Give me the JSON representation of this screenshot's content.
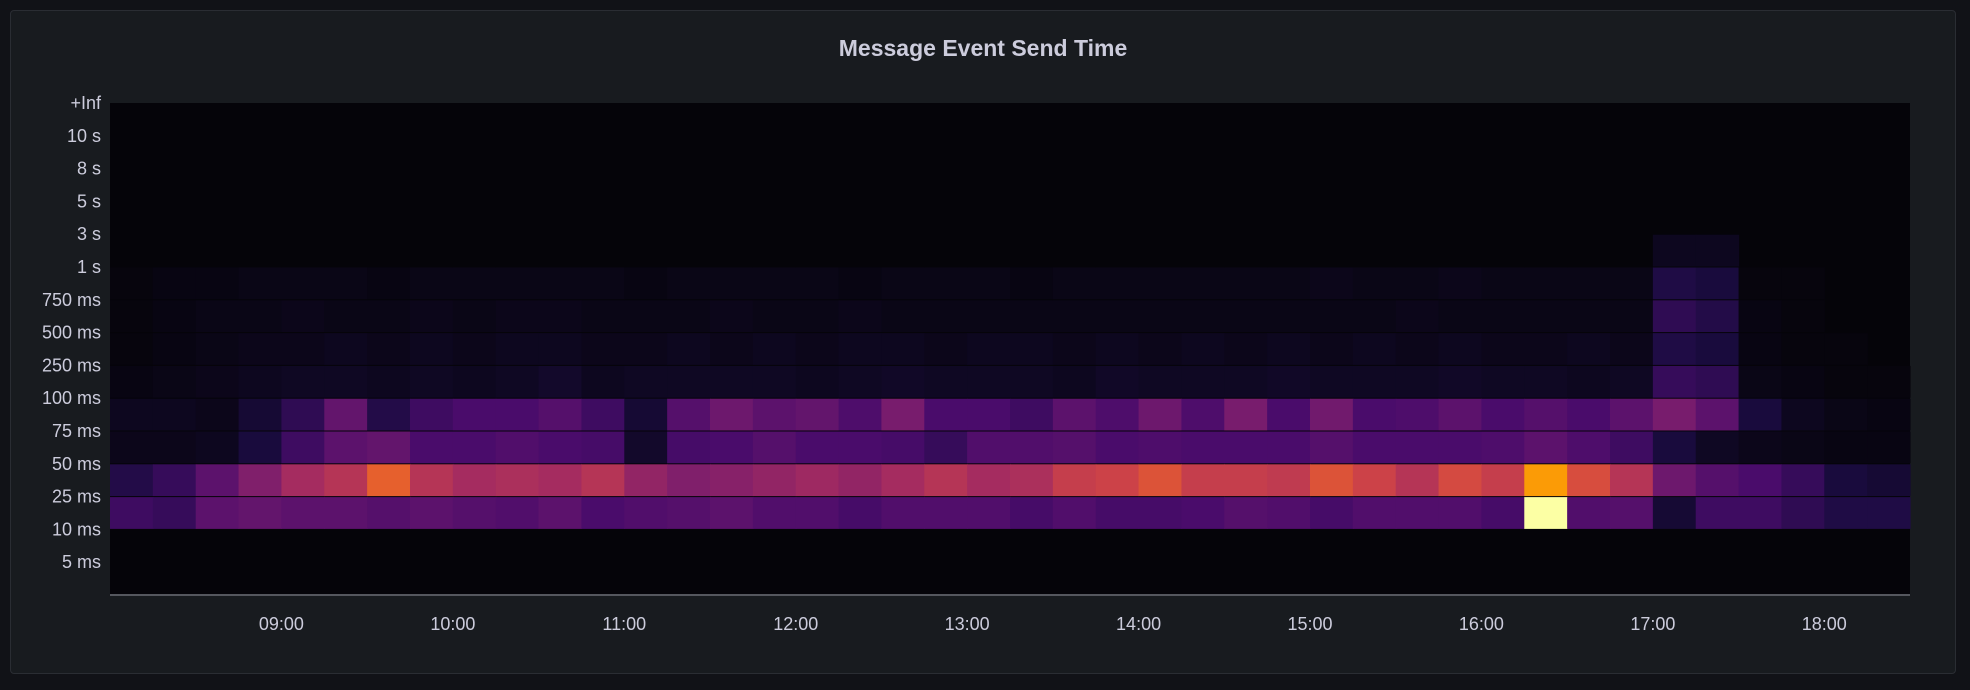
{
  "chart_data": {
    "type": "heatmap",
    "title": "Message Event Send Time",
    "x_ticks": [
      "09:00",
      "10:00",
      "11:00",
      "12:00",
      "13:00",
      "14:00",
      "15:00",
      "16:00",
      "17:00",
      "18:00"
    ],
    "x_range": [
      "08:00",
      "18:30"
    ],
    "column_interval_minutes": 15,
    "y_ticks": [
      "+Inf",
      "10 s",
      "8 s",
      "5 s",
      "3 s",
      "1 s",
      "750 ms",
      "500 ms",
      "250 ms",
      "100 ms",
      "75 ms",
      "50 ms",
      "25 ms",
      "10 ms",
      "5 ms"
    ],
    "color_scheme": "inferno",
    "colors": {
      "background": "#111217",
      "panel": "#181b1f",
      "plot": "#050409",
      "text": "#ccccdc"
    },
    "rows": [
      {
        "bucket": "3 s",
        "values": [
          0,
          0,
          0,
          0,
          0,
          0,
          0,
          0,
          0,
          0,
          0,
          0,
          0,
          0,
          0,
          0,
          0,
          0,
          0,
          0,
          0,
          0,
          0,
          0,
          0,
          0,
          0,
          0,
          0,
          0,
          0,
          0,
          0,
          0,
          0,
          0,
          0.05,
          0.05,
          0,
          0,
          0,
          0
        ]
      },
      {
        "bucket": "1 s",
        "values": [
          0.01,
          0.02,
          0.02,
          0.03,
          0.03,
          0.03,
          0.02,
          0.03,
          0.03,
          0.03,
          0.03,
          0.03,
          0.02,
          0.03,
          0.03,
          0.03,
          0.03,
          0.02,
          0.03,
          0.03,
          0.03,
          0.02,
          0.03,
          0.03,
          0.03,
          0.03,
          0.03,
          0.03,
          0.04,
          0.03,
          0.03,
          0.04,
          0.03,
          0.03,
          0.03,
          0.03,
          0.14,
          0.12,
          0.01,
          0.01,
          0,
          0
        ]
      },
      {
        "bucket": "750 ms",
        "values": [
          0.01,
          0.02,
          0.03,
          0.03,
          0.04,
          0.03,
          0.03,
          0.04,
          0.03,
          0.04,
          0.04,
          0.03,
          0.03,
          0.03,
          0.04,
          0.03,
          0.03,
          0.04,
          0.03,
          0.03,
          0.03,
          0.03,
          0.03,
          0.03,
          0.03,
          0.03,
          0.03,
          0.03,
          0.03,
          0.03,
          0.04,
          0.03,
          0.03,
          0.03,
          0.03,
          0.03,
          0.18,
          0.15,
          0.02,
          0.01,
          0,
          0
        ]
      },
      {
        "bucket": "500 ms",
        "values": [
          0.01,
          0.02,
          0.03,
          0.04,
          0.04,
          0.05,
          0.04,
          0.05,
          0.04,
          0.05,
          0.05,
          0.04,
          0.04,
          0.05,
          0.04,
          0.05,
          0.04,
          0.05,
          0.05,
          0.04,
          0.05,
          0.05,
          0.04,
          0.05,
          0.04,
          0.05,
          0.04,
          0.05,
          0.04,
          0.05,
          0.04,
          0.05,
          0.04,
          0.04,
          0.05,
          0.04,
          0.14,
          0.12,
          0.02,
          0.01,
          0.01,
          0
        ]
      },
      {
        "bucket": "250 ms",
        "values": [
          0.02,
          0.03,
          0.04,
          0.05,
          0.06,
          0.06,
          0.05,
          0.06,
          0.05,
          0.06,
          0.08,
          0.05,
          0.06,
          0.06,
          0.06,
          0.06,
          0.05,
          0.06,
          0.07,
          0.06,
          0.06,
          0.06,
          0.05,
          0.07,
          0.06,
          0.06,
          0.06,
          0.07,
          0.06,
          0.06,
          0.06,
          0.07,
          0.06,
          0.06,
          0.05,
          0.06,
          0.2,
          0.18,
          0.03,
          0.02,
          0.01,
          0.01
        ]
      },
      {
        "bucket": "100 ms",
        "values": [
          0.05,
          0.05,
          0.04,
          0.1,
          0.18,
          0.32,
          0.15,
          0.22,
          0.25,
          0.25,
          0.28,
          0.22,
          0.1,
          0.28,
          0.35,
          0.3,
          0.32,
          0.26,
          0.38,
          0.25,
          0.25,
          0.22,
          0.3,
          0.26,
          0.35,
          0.26,
          0.38,
          0.25,
          0.36,
          0.25,
          0.26,
          0.3,
          0.25,
          0.28,
          0.25,
          0.3,
          0.38,
          0.3,
          0.12,
          0.05,
          0.03,
          0.02
        ]
      },
      {
        "bucket": "75 ms",
        "values": [
          0.04,
          0.04,
          0.05,
          0.12,
          0.22,
          0.3,
          0.32,
          0.25,
          0.25,
          0.27,
          0.25,
          0.24,
          0.08,
          0.24,
          0.25,
          0.28,
          0.25,
          0.25,
          0.24,
          0.2,
          0.27,
          0.27,
          0.28,
          0.25,
          0.26,
          0.25,
          0.25,
          0.25,
          0.28,
          0.25,
          0.25,
          0.25,
          0.26,
          0.3,
          0.26,
          0.22,
          0.12,
          0.06,
          0.04,
          0.03,
          0.02,
          0.02
        ]
      },
      {
        "bucket": "50 ms",
        "values": [
          0.15,
          0.2,
          0.3,
          0.4,
          0.5,
          0.55,
          0.72,
          0.55,
          0.5,
          0.52,
          0.5,
          0.55,
          0.45,
          0.4,
          0.42,
          0.45,
          0.48,
          0.45,
          0.5,
          0.55,
          0.5,
          0.52,
          0.6,
          0.62,
          0.68,
          0.6,
          0.6,
          0.58,
          0.68,
          0.62,
          0.55,
          0.65,
          0.6,
          0.88,
          0.66,
          0.55,
          0.35,
          0.28,
          0.25,
          0.2,
          0.12,
          0.1
        ]
      },
      {
        "bucket": "25 ms",
        "values": [
          0.22,
          0.2,
          0.3,
          0.32,
          0.3,
          0.3,
          0.28,
          0.3,
          0.28,
          0.27,
          0.3,
          0.25,
          0.27,
          0.28,
          0.3,
          0.27,
          0.27,
          0.24,
          0.27,
          0.27,
          0.27,
          0.24,
          0.27,
          0.24,
          0.24,
          0.25,
          0.28,
          0.27,
          0.24,
          0.27,
          0.27,
          0.27,
          0.24,
          1.0,
          0.27,
          0.28,
          0.1,
          0.22,
          0.22,
          0.18,
          0.14,
          0.14
        ]
      }
    ]
  }
}
